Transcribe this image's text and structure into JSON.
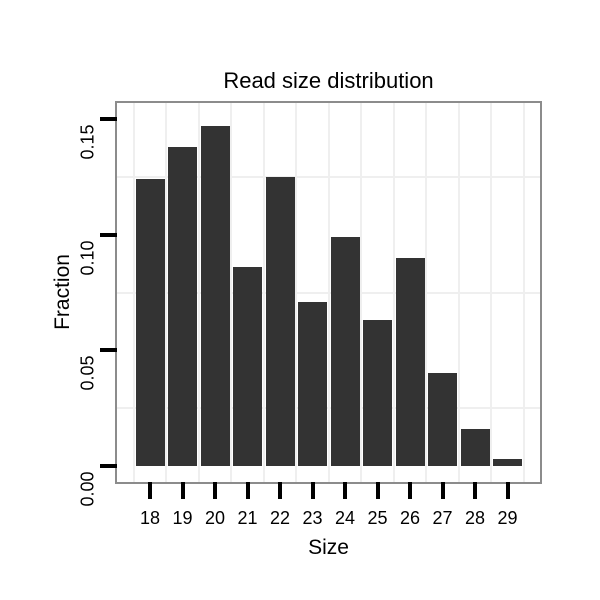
{
  "chart_data": {
    "type": "bar",
    "title": "Read size distribution",
    "xlabel": "Size",
    "ylabel": "Fraction",
    "categories": [
      "18",
      "19",
      "20",
      "21",
      "22",
      "23",
      "24",
      "25",
      "26",
      "27",
      "28",
      "29"
    ],
    "values": [
      0.124,
      0.138,
      0.147,
      0.086,
      0.125,
      0.071,
      0.099,
      0.063,
      0.09,
      0.04,
      0.016,
      0.003
    ],
    "ylim": [
      0,
      0.157
    ],
    "yticks": [
      0,
      0.05,
      0.1,
      0.15
    ],
    "ytick_labels": [
      "0.00",
      "0.05",
      "0.10",
      "0.15"
    ],
    "minor_gridline_values": [
      0.025,
      0.075,
      0.125
    ],
    "grid": "minor horizontal gridlines between ticks, vertical gridlines between categories",
    "legend": "none",
    "colors": {
      "bar": "#333333",
      "panel_border": "#8c8c8c",
      "gridline": "#efefef",
      "tick": "#000000",
      "text": "#000000",
      "background": "#ffffff"
    }
  }
}
